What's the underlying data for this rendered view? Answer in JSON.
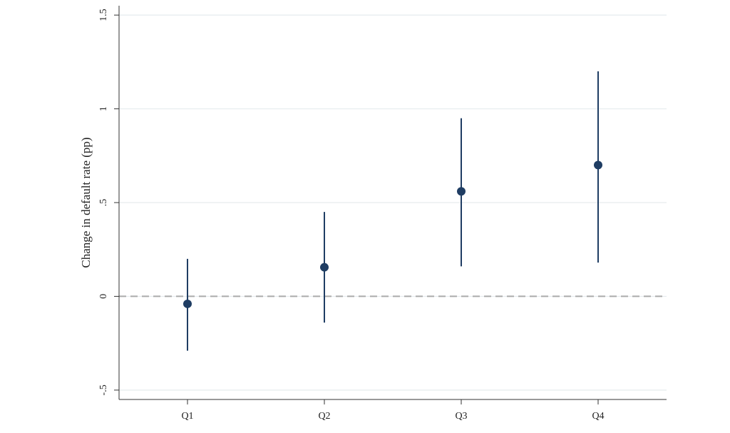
{
  "chart_data": {
    "type": "errorbar",
    "y_label": "Change in default rate (pp)",
    "categories": [
      "Q1",
      "Q2",
      "Q3",
      "Q4"
    ],
    "series": [
      {
        "color": "#1f3d63",
        "values": [
          -0.04,
          0.155,
          0.56,
          0.7
        ],
        "lower": [
          -0.29,
          -0.14,
          0.16,
          0.18
        ],
        "upper": [
          0.2,
          0.45,
          0.95,
          1.2
        ]
      }
    ],
    "ylim": [
      -0.55,
      1.55
    ],
    "yticks": [
      {
        "value": -0.5,
        "label": "-.5"
      },
      0,
      {
        "value": 0.5,
        "label": ".5"
      },
      1,
      1.5
    ],
    "grid": true,
    "yline": 0
  }
}
